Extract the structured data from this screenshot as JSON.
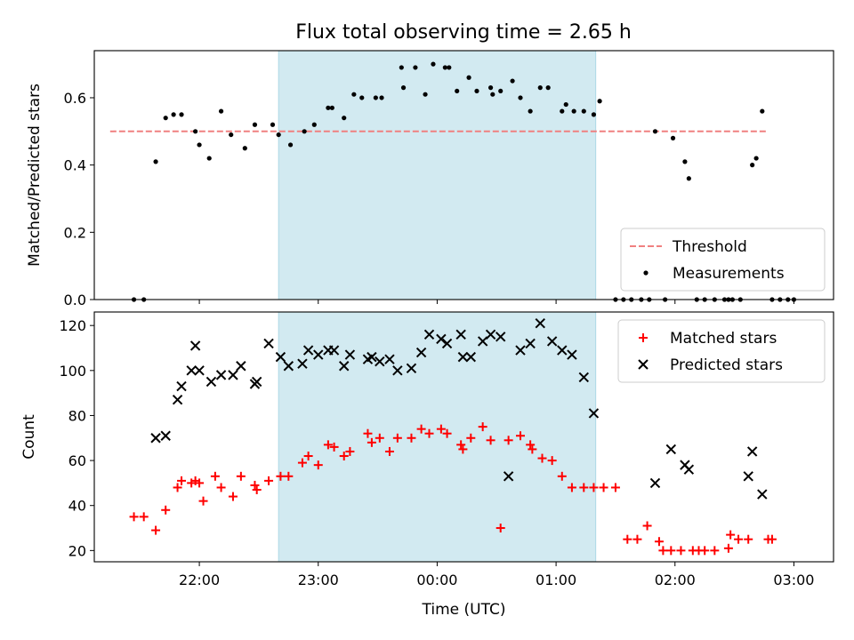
{
  "title": "Flux total observing time = 2.65 h",
  "colors": {
    "threshold": "#f08080",
    "measurements": "#000000",
    "matched": "#ff0000",
    "predicted": "#000000",
    "observing_window": "#add8e6"
  },
  "chart_data": [
    {
      "type": "scatter",
      "ylabel": "Matched/Predicted stars",
      "ylim": [
        0,
        0.74
      ],
      "yticks": [
        "0.0",
        "0.2",
        "0.4",
        "0.6"
      ],
      "xlim": [
        "21:07",
        "03:20"
      ],
      "x_tick_labels_shown": false,
      "observing_window": [
        "22:40",
        "01:20"
      ],
      "threshold": {
        "name": "Threshold",
        "value": 0.5,
        "x": [
          "21:15",
          "02:47"
        ],
        "style": "dashed"
      },
      "legend_position": "lower right",
      "series": [
        {
          "name": "Measurements",
          "marker": "dot",
          "points": [
            [
              "21:27",
              0.0
            ],
            [
              "21:32",
              0.0
            ],
            [
              "21:38",
              0.41
            ],
            [
              "21:43",
              0.54
            ],
            [
              "21:47",
              0.55
            ],
            [
              "21:51",
              0.55
            ],
            [
              "21:58",
              0.5
            ],
            [
              "22:00",
              0.46
            ],
            [
              "22:05",
              0.42
            ],
            [
              "22:11",
              0.56
            ],
            [
              "22:16",
              0.49
            ],
            [
              "22:23",
              0.45
            ],
            [
              "22:28",
              0.52
            ],
            [
              "22:37",
              0.52
            ],
            [
              "22:40",
              0.49
            ],
            [
              "22:46",
              0.46
            ],
            [
              "22:53",
              0.5
            ],
            [
              "22:58",
              0.52
            ],
            [
              "23:05",
              0.57
            ],
            [
              "23:07",
              0.57
            ],
            [
              "23:13",
              0.54
            ],
            [
              "23:18",
              0.61
            ],
            [
              "23:22",
              0.6
            ],
            [
              "23:29",
              0.6
            ],
            [
              "23:32",
              0.6
            ],
            [
              "23:42",
              0.69
            ],
            [
              "23:43",
              0.63
            ],
            [
              "23:49",
              0.69
            ],
            [
              "23:54",
              0.61
            ],
            [
              "23:58",
              0.7
            ],
            [
              "00:04",
              0.69
            ],
            [
              "00:06",
              0.69
            ],
            [
              "00:10",
              0.62
            ],
            [
              "00:16",
              0.66
            ],
            [
              "00:20",
              0.62
            ],
            [
              "00:27",
              0.63
            ],
            [
              "00:28",
              0.61
            ],
            [
              "00:32",
              0.62
            ],
            [
              "00:38",
              0.65
            ],
            [
              "00:42",
              0.6
            ],
            [
              "00:47",
              0.56
            ],
            [
              "00:52",
              0.63
            ],
            [
              "00:56",
              0.63
            ],
            [
              "01:03",
              0.56
            ],
            [
              "01:05",
              0.58
            ],
            [
              "01:09",
              0.56
            ],
            [
              "01:14",
              0.56
            ],
            [
              "01:19",
              0.55
            ],
            [
              "01:22",
              0.59
            ],
            [
              "01:30",
              0.0
            ],
            [
              "01:34",
              0.0
            ],
            [
              "01:38",
              0.0
            ],
            [
              "01:43",
              0.0
            ],
            [
              "01:47",
              0.0
            ],
            [
              "01:50",
              0.5
            ],
            [
              "01:55",
              0.0
            ],
            [
              "01:59",
              0.48
            ],
            [
              "02:05",
              0.41
            ],
            [
              "02:07",
              0.36
            ],
            [
              "02:11",
              0.0
            ],
            [
              "02:15",
              0.0
            ],
            [
              "02:20",
              0.0
            ],
            [
              "02:25",
              0.0
            ],
            [
              "02:27",
              0.0
            ],
            [
              "02:29",
              0.0
            ],
            [
              "02:33",
              0.0
            ],
            [
              "02:39",
              0.4
            ],
            [
              "02:41",
              0.42
            ],
            [
              "02:44",
              0.56
            ],
            [
              "02:49",
              0.0
            ],
            [
              "02:53",
              0.0
            ],
            [
              "02:57",
              0.0
            ],
            [
              "03:00",
              0.0
            ]
          ]
        }
      ]
    },
    {
      "type": "scatter",
      "xlabel": "Time (UTC)",
      "ylabel": "Count",
      "ylim": [
        15,
        126
      ],
      "yticks": [
        "20",
        "40",
        "60",
        "80",
        "100",
        "120"
      ],
      "xlim": [
        "21:07",
        "03:20"
      ],
      "xticks": [
        "22:00",
        "23:00",
        "00:00",
        "01:00",
        "02:00",
        "03:00"
      ],
      "observing_window": [
        "22:40",
        "01:20"
      ],
      "legend_position": "upper right",
      "series": [
        {
          "name": "Matched stars",
          "marker": "plus",
          "points": [
            [
              "21:27",
              35
            ],
            [
              "21:32",
              35
            ],
            [
              "21:38",
              29
            ],
            [
              "21:43",
              38
            ],
            [
              "21:49",
              48
            ],
            [
              "21:51",
              51
            ],
            [
              "21:56",
              50
            ],
            [
              "21:58",
              51
            ],
            [
              "22:00",
              50
            ],
            [
              "22:02",
              42
            ],
            [
              "22:08",
              53
            ],
            [
              "22:11",
              48
            ],
            [
              "22:17",
              44
            ],
            [
              "22:21",
              53
            ],
            [
              "22:28",
              49
            ],
            [
              "22:29",
              47
            ],
            [
              "22:35",
              51
            ],
            [
              "22:41",
              53
            ],
            [
              "22:45",
              53
            ],
            [
              "22:52",
              59
            ],
            [
              "22:55",
              62
            ],
            [
              "23:00",
              58
            ],
            [
              "23:05",
              67
            ],
            [
              "23:08",
              66
            ],
            [
              "23:13",
              62
            ],
            [
              "23:16",
              64
            ],
            [
              "23:25",
              72
            ],
            [
              "23:27",
              68
            ],
            [
              "23:31",
              70
            ],
            [
              "23:36",
              64
            ],
            [
              "23:40",
              70
            ],
            [
              "23:47",
              70
            ],
            [
              "23:52",
              74
            ],
            [
              "23:56",
              72
            ],
            [
              "00:02",
              74
            ],
            [
              "00:05",
              72
            ],
            [
              "00:12",
              67
            ],
            [
              "00:13",
              65
            ],
            [
              "00:17",
              70
            ],
            [
              "00:23",
              75
            ],
            [
              "00:27",
              69
            ],
            [
              "00:32",
              30
            ],
            [
              "00:36",
              69
            ],
            [
              "00:42",
              71
            ],
            [
              "00:47",
              67
            ],
            [
              "00:48",
              65
            ],
            [
              "00:53",
              61
            ],
            [
              "00:58",
              60
            ],
            [
              "01:03",
              53
            ],
            [
              "01:08",
              48
            ],
            [
              "01:14",
              48
            ],
            [
              "01:19",
              48
            ],
            [
              "01:24",
              48
            ],
            [
              "01:30",
              48
            ],
            [
              "01:36",
              25
            ],
            [
              "01:41",
              25
            ],
            [
              "01:46",
              31
            ],
            [
              "01:52",
              24
            ],
            [
              "01:54",
              20
            ],
            [
              "01:58",
              20
            ],
            [
              "02:03",
              20
            ],
            [
              "02:09",
              20
            ],
            [
              "02:12",
              20
            ],
            [
              "02:15",
              20
            ],
            [
              "02:20",
              20
            ],
            [
              "02:27",
              21
            ],
            [
              "02:28",
              27
            ],
            [
              "02:32",
              25
            ],
            [
              "02:37",
              25
            ],
            [
              "02:47",
              25
            ],
            [
              "02:49",
              25
            ]
          ]
        },
        {
          "name": "Predicted stars",
          "marker": "x",
          "points": [
            [
              "21:38",
              70
            ],
            [
              "21:43",
              71
            ],
            [
              "21:49",
              87
            ],
            [
              "21:51",
              93
            ],
            [
              "21:56",
              100
            ],
            [
              "21:58",
              111
            ],
            [
              "22:00",
              100
            ],
            [
              "22:06",
              95
            ],
            [
              "22:11",
              98
            ],
            [
              "22:17",
              98
            ],
            [
              "22:21",
              102
            ],
            [
              "22:28",
              94
            ],
            [
              "22:29",
              95
            ],
            [
              "22:35",
              112
            ],
            [
              "22:41",
              106
            ],
            [
              "22:45",
              102
            ],
            [
              "22:52",
              103
            ],
            [
              "22:55",
              109
            ],
            [
              "23:00",
              107
            ],
            [
              "23:05",
              109
            ],
            [
              "23:08",
              109
            ],
            [
              "23:13",
              102
            ],
            [
              "23:16",
              107
            ],
            [
              "23:25",
              105
            ],
            [
              "23:27",
              106
            ],
            [
              "23:31",
              104
            ],
            [
              "23:36",
              105
            ],
            [
              "23:40",
              100
            ],
            [
              "23:47",
              101
            ],
            [
              "23:52",
              108
            ],
            [
              "23:56",
              116
            ],
            [
              "00:02",
              114
            ],
            [
              "00:05",
              112
            ],
            [
              "00:12",
              116
            ],
            [
              "00:13",
              106
            ],
            [
              "00:17",
              106
            ],
            [
              "00:23",
              113
            ],
            [
              "00:27",
              116
            ],
            [
              "00:32",
              115
            ],
            [
              "00:36",
              53
            ],
            [
              "00:42",
              109
            ],
            [
              "00:47",
              112
            ],
            [
              "00:52",
              121
            ],
            [
              "00:58",
              113
            ],
            [
              "01:03",
              109
            ],
            [
              "01:08",
              107
            ],
            [
              "01:14",
              97
            ],
            [
              "01:19",
              81
            ],
            [
              "01:50",
              50
            ],
            [
              "01:58",
              65
            ],
            [
              "02:05",
              58
            ],
            [
              "02:07",
              56
            ],
            [
              "02:37",
              53
            ],
            [
              "02:39",
              64
            ],
            [
              "02:44",
              45
            ]
          ]
        }
      ]
    }
  ]
}
